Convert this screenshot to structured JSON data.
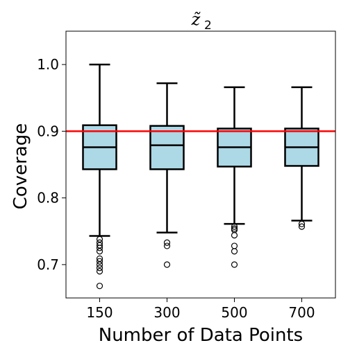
{
  "chart_data": {
    "type": "box",
    "title": "z̃",
    "title_subscript": "2",
    "xlabel": "Number of Data Points",
    "ylabel": "Coverage",
    "categories": [
      "150",
      "300",
      "500",
      "700"
    ],
    "ylim": [
      0.65,
      1.05
    ],
    "yticks": [
      0.7,
      0.8,
      0.9,
      1.0
    ],
    "ytick_labels": [
      "0.7",
      "0.8",
      "0.9",
      "1.0"
    ],
    "reference_line": {
      "y": 0.9,
      "color": "#ff0000"
    },
    "box_fill": "#add8e6",
    "boxes": [
      {
        "category": "150",
        "whisker_low": 0.743,
        "q1": 0.843,
        "median": 0.876,
        "q3": 0.909,
        "whisker_high": 1.0,
        "outliers": [
          0.738,
          0.733,
          0.729,
          0.725,
          0.72,
          0.709,
          0.705,
          0.7,
          0.695,
          0.69,
          0.668
        ]
      },
      {
        "category": "300",
        "whisker_low": 0.748,
        "q1": 0.843,
        "median": 0.879,
        "q3": 0.908,
        "whisker_high": 0.972,
        "outliers": [
          0.733,
          0.728,
          0.7
        ]
      },
      {
        "category": "500",
        "whisker_low": 0.761,
        "q1": 0.847,
        "median": 0.876,
        "q3": 0.904,
        "whisker_high": 0.966,
        "outliers": [
          0.757,
          0.754,
          0.752,
          0.744,
          0.728,
          0.72,
          0.7
        ]
      },
      {
        "category": "700",
        "whisker_low": 0.766,
        "q1": 0.848,
        "median": 0.876,
        "q3": 0.904,
        "whisker_high": 0.966,
        "outliers": [
          0.761,
          0.757
        ]
      }
    ]
  }
}
